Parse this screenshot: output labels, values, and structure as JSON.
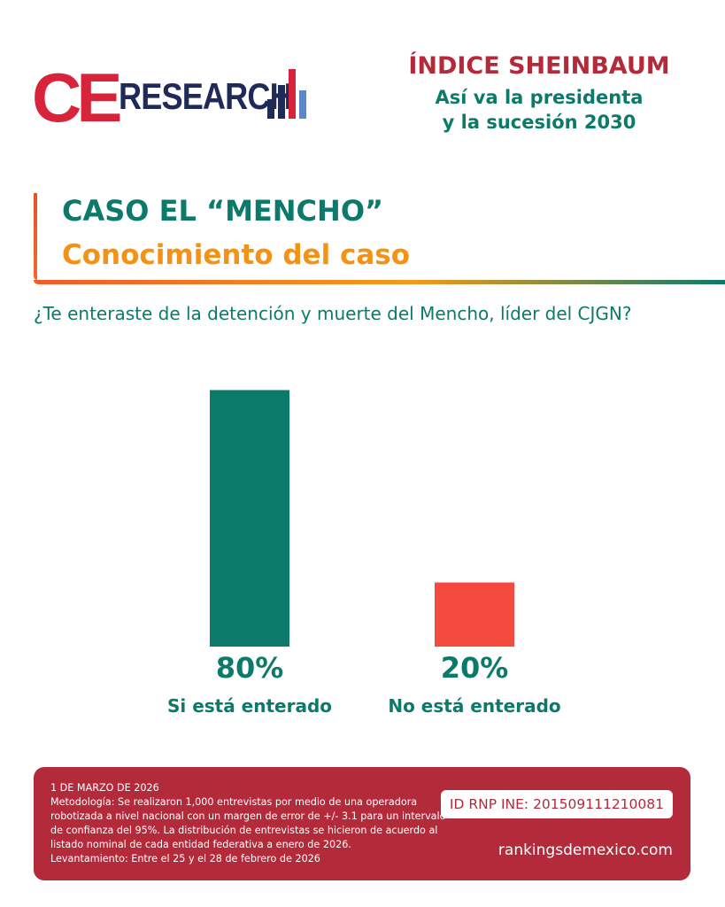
{
  "logo": {
    "ce": "CE",
    "research": "RESEARCH"
  },
  "header": {
    "title": "ÍNDICE SHEINBAUM",
    "subtitle_line1": "Así va la presidenta",
    "subtitle_line2": "y la sucesión 2030"
  },
  "section": {
    "title": "CASO EL “MENCHO”",
    "subtitle": "Conocimiento del caso"
  },
  "question": "¿Te enteraste de la detención y muerte del Mencho, líder del CJGN?",
  "colors": {
    "teal": "#0c7a6a",
    "red": "#f24a3c",
    "maroon": "#b32a3b",
    "orange": "#f39214"
  },
  "chart_data": {
    "type": "bar",
    "categories": [
      "Si está enterado",
      "No está enterado"
    ],
    "values": [
      80,
      20
    ],
    "value_labels": [
      "80%",
      "20%"
    ],
    "colors": [
      "#0c7a6a",
      "#f24a3c"
    ],
    "ylim": [
      0,
      100
    ],
    "grid": false
  },
  "footer": {
    "date": "1 DE MARZO DE 2026",
    "methodology": "Metodología: Se realizaron 1,000 entrevistas por medio de una operadora robotizada a nivel nacional con un margen de error de +/- 3.1 para un intervalo de confianza del 95%. La distribución de entrevistas se hicieron de acuerdo al listado nominal de cada entidad federativa a enero de 2026.",
    "fieldwork": "Levantamiento: Entre el 25 y el 28 de febrero de 2026",
    "id_rnp": "ID RNP INE: 201509111210081",
    "website": "rankingsdemexico.com"
  }
}
